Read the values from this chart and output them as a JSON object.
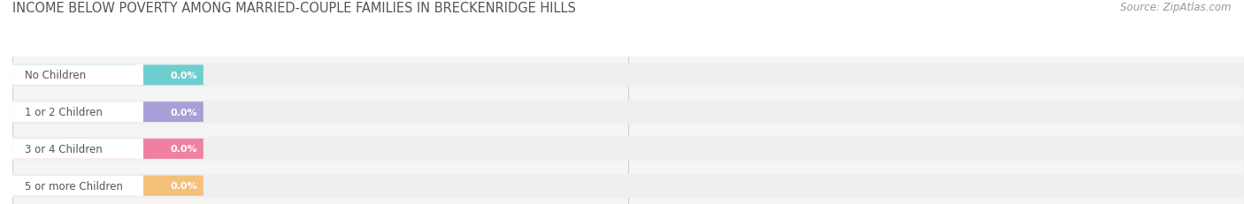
{
  "title": "INCOME BELOW POVERTY AMONG MARRIED-COUPLE FAMILIES IN BRECKENRIDGE HILLS",
  "source": "Source: ZipAtlas.com",
  "categories": [
    "No Children",
    "1 or 2 Children",
    "3 or 4 Children",
    "5 or more Children"
  ],
  "values": [
    0.0,
    0.0,
    0.0,
    0.0
  ],
  "bar_colors": [
    "#6ecece",
    "#a89fd8",
    "#f080a0",
    "#f5c07a"
  ],
  "title_fontsize": 10.5,
  "source_fontsize": 8.5,
  "label_fontsize": 8.5,
  "value_fontsize": 8.0,
  "tick_fontsize": 8.0,
  "figure_bg": "#ffffff",
  "row_bg": "#efefef",
  "chart_bg": "#f5f5f5",
  "pill_white": "#ffffff",
  "grid_color": "#d0d0d0",
  "tick_color": "#888888",
  "label_color": "#555555",
  "title_color": "#555555",
  "source_color": "#999999"
}
